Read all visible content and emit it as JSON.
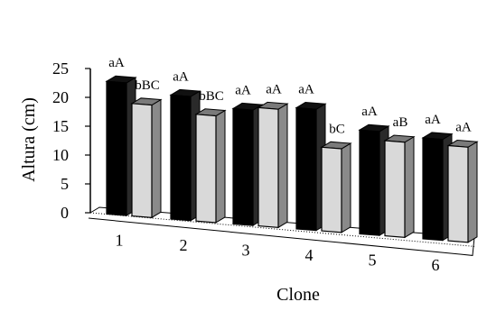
{
  "chart_data": {
    "type": "bar",
    "style": "3d-perspective",
    "xlabel": "Clone",
    "ylabel": "Altura (cm)",
    "ylim": [
      0,
      25
    ],
    "yticks": [
      0,
      5,
      10,
      15,
      20,
      25
    ],
    "categories": [
      "1",
      "2",
      "3",
      "4",
      "5",
      "6"
    ],
    "series": [
      {
        "color": "#000000",
        "side_color": "#2a2a2a",
        "values": [
          23,
          21.5,
          20,
          21,
          18,
          17.5
        ],
        "labels": [
          "aA",
          "aA",
          "aA",
          "aA",
          "aA",
          "aA"
        ]
      },
      {
        "color": "#d9d9d9",
        "side_color": "#8a8a8a",
        "values": [
          19.5,
          18.5,
          20.5,
          14.5,
          16.5,
          16.5
        ],
        "labels": [
          "bBC",
          "bBC",
          "aA",
          "bC",
          "aB",
          "aA"
        ]
      }
    ]
  }
}
